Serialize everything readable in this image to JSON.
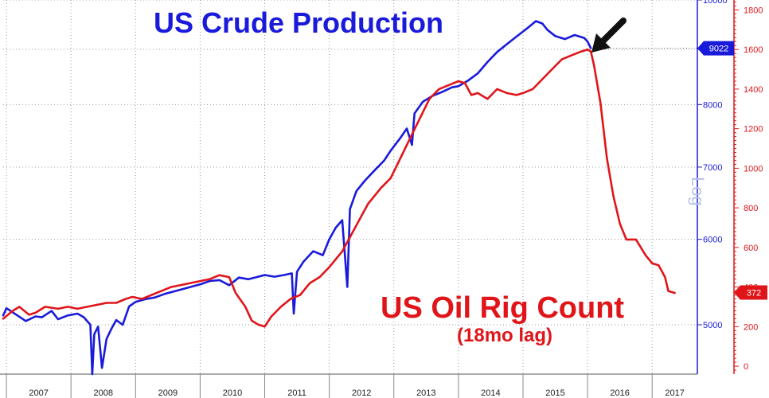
{
  "titles": {
    "production": "US Crude Production",
    "rigs": "US Oil Rig Count",
    "rigs_sub": "(18mo lag)",
    "log_label": "Log"
  },
  "chart_data": {
    "type": "line",
    "x_tick_labels": [
      "2007",
      "2008",
      "2009",
      "2010",
      "2011",
      "2012",
      "2013",
      "2014",
      "2015",
      "2016",
      "2017"
    ],
    "x_range": [
      2006.95,
      2017.7
    ],
    "grid": true,
    "colors": {
      "production": "#1a1adb",
      "rigs": "#e0151a",
      "arrow": "#111111"
    },
    "y_left": {
      "name": "US Crude Production",
      "scale": "log",
      "range": [
        4500,
        10000
      ],
      "ticks": [
        5000,
        6000,
        7000,
        8000,
        9000,
        10000
      ],
      "tick_labels": [
        "5000",
        "6000",
        "7000",
        "8000",
        "9000",
        "10000"
      ],
      "last_value_label": "9022",
      "last_value": 9022
    },
    "y_right": {
      "name": "US Oil Rig Count",
      "range": [
        -40,
        1850
      ],
      "ticks": [
        0,
        200,
        400,
        600,
        800,
        1000,
        1200,
        1400,
        1600,
        1800
      ],
      "tick_labels": [
        "0",
        "200",
        "400",
        "600",
        "800",
        "1000",
        "1200",
        "1400",
        "1600",
        "1800"
      ],
      "last_value_label": "372",
      "last_value": 372
    },
    "series": [
      {
        "key": "production",
        "axis": "left",
        "points": [
          [
            2006.95,
            5100
          ],
          [
            2007.0,
            5180
          ],
          [
            2007.15,
            5110
          ],
          [
            2007.3,
            5040
          ],
          [
            2007.45,
            5090
          ],
          [
            2007.55,
            5080
          ],
          [
            2007.7,
            5150
          ],
          [
            2007.8,
            5060
          ],
          [
            2007.95,
            5100
          ],
          [
            2008.1,
            5120
          ],
          [
            2008.2,
            5080
          ],
          [
            2008.3,
            5000
          ],
          [
            2008.33,
            4500
          ],
          [
            2008.36,
            4900
          ],
          [
            2008.42,
            4980
          ],
          [
            2008.48,
            4560
          ],
          [
            2008.55,
            4850
          ],
          [
            2008.62,
            4950
          ],
          [
            2008.7,
            5050
          ],
          [
            2008.8,
            5000
          ],
          [
            2008.9,
            5200
          ],
          [
            2009.0,
            5250
          ],
          [
            2009.15,
            5280
          ],
          [
            2009.3,
            5300
          ],
          [
            2009.45,
            5340
          ],
          [
            2009.6,
            5370
          ],
          [
            2009.75,
            5400
          ],
          [
            2009.9,
            5430
          ],
          [
            2010.0,
            5450
          ],
          [
            2010.15,
            5490
          ],
          [
            2010.3,
            5500
          ],
          [
            2010.45,
            5440
          ],
          [
            2010.6,
            5530
          ],
          [
            2010.75,
            5510
          ],
          [
            2010.9,
            5540
          ],
          [
            2011.0,
            5560
          ],
          [
            2011.15,
            5540
          ],
          [
            2011.3,
            5560
          ],
          [
            2011.42,
            5580
          ],
          [
            2011.45,
            5120
          ],
          [
            2011.5,
            5600
          ],
          [
            2011.6,
            5720
          ],
          [
            2011.75,
            5850
          ],
          [
            2011.9,
            5800
          ],
          [
            2012.0,
            6000
          ],
          [
            2012.1,
            6150
          ],
          [
            2012.2,
            6250
          ],
          [
            2012.28,
            5420
          ],
          [
            2012.32,
            6400
          ],
          [
            2012.42,
            6650
          ],
          [
            2012.55,
            6800
          ],
          [
            2012.7,
            6950
          ],
          [
            2012.85,
            7100
          ],
          [
            2012.95,
            7250
          ],
          [
            2013.1,
            7450
          ],
          [
            2013.2,
            7600
          ],
          [
            2013.28,
            7340
          ],
          [
            2013.32,
            7850
          ],
          [
            2013.45,
            8050
          ],
          [
            2013.6,
            8150
          ],
          [
            2013.75,
            8220
          ],
          [
            2013.9,
            8300
          ],
          [
            2014.0,
            8320
          ],
          [
            2014.15,
            8420
          ],
          [
            2014.3,
            8550
          ],
          [
            2014.45,
            8760
          ],
          [
            2014.6,
            8950
          ],
          [
            2014.75,
            9100
          ],
          [
            2014.9,
            9250
          ],
          [
            2015.0,
            9350
          ],
          [
            2015.1,
            9450
          ],
          [
            2015.2,
            9560
          ],
          [
            2015.3,
            9510
          ],
          [
            2015.38,
            9380
          ],
          [
            2015.5,
            9260
          ],
          [
            2015.65,
            9200
          ],
          [
            2015.8,
            9280
          ],
          [
            2015.95,
            9220
          ],
          [
            2016.0,
            9150
          ],
          [
            2016.05,
            9022
          ]
        ]
      },
      {
        "key": "rigs",
        "axis": "right",
        "points": [
          [
            2006.95,
            240
          ],
          [
            2007.1,
            280
          ],
          [
            2007.2,
            300
          ],
          [
            2007.35,
            260
          ],
          [
            2007.45,
            270
          ],
          [
            2007.6,
            300
          ],
          [
            2007.8,
            290
          ],
          [
            2007.95,
            300
          ],
          [
            2008.1,
            290
          ],
          [
            2008.25,
            300
          ],
          [
            2008.4,
            310
          ],
          [
            2008.55,
            320
          ],
          [
            2008.7,
            320
          ],
          [
            2008.85,
            340
          ],
          [
            2008.95,
            350
          ],
          [
            2009.1,
            340
          ],
          [
            2009.25,
            360
          ],
          [
            2009.4,
            380
          ],
          [
            2009.55,
            400
          ],
          [
            2009.7,
            410
          ],
          [
            2009.85,
            420
          ],
          [
            2010.0,
            430
          ],
          [
            2010.15,
            440
          ],
          [
            2010.3,
            460
          ],
          [
            2010.45,
            450
          ],
          [
            2010.55,
            370
          ],
          [
            2010.7,
            300
          ],
          [
            2010.8,
            230
          ],
          [
            2010.9,
            210
          ],
          [
            2011.0,
            200
          ],
          [
            2011.1,
            250
          ],
          [
            2011.25,
            300
          ],
          [
            2011.4,
            340
          ],
          [
            2011.55,
            360
          ],
          [
            2011.7,
            420
          ],
          [
            2011.85,
            450
          ],
          [
            2012.0,
            500
          ],
          [
            2012.2,
            580
          ],
          [
            2012.4,
            700
          ],
          [
            2012.6,
            820
          ],
          [
            2012.8,
            900
          ],
          [
            2012.95,
            950
          ],
          [
            2013.1,
            1050
          ],
          [
            2013.25,
            1150
          ],
          [
            2013.4,
            1250
          ],
          [
            2013.55,
            1350
          ],
          [
            2013.7,
            1400
          ],
          [
            2013.85,
            1420
          ],
          [
            2014.0,
            1440
          ],
          [
            2014.1,
            1430
          ],
          [
            2014.2,
            1370
          ],
          [
            2014.3,
            1380
          ],
          [
            2014.45,
            1350
          ],
          [
            2014.6,
            1400
          ],
          [
            2014.75,
            1380
          ],
          [
            2014.9,
            1370
          ],
          [
            2015.0,
            1380
          ],
          [
            2015.15,
            1400
          ],
          [
            2015.3,
            1450
          ],
          [
            2015.45,
            1500
          ],
          [
            2015.6,
            1550
          ],
          [
            2015.75,
            1570
          ],
          [
            2015.9,
            1590
          ],
          [
            2016.0,
            1600
          ],
          [
            2016.05,
            1590
          ],
          [
            2016.1,
            1520
          ],
          [
            2016.2,
            1330
          ],
          [
            2016.3,
            1050
          ],
          [
            2016.4,
            860
          ],
          [
            2016.5,
            720
          ],
          [
            2016.6,
            640
          ],
          [
            2016.75,
            640
          ],
          [
            2016.9,
            560
          ],
          [
            2017.0,
            520
          ],
          [
            2017.1,
            510
          ],
          [
            2017.2,
            450
          ],
          [
            2017.25,
            380
          ],
          [
            2017.35,
            370
          ]
        ]
      }
    ]
  }
}
